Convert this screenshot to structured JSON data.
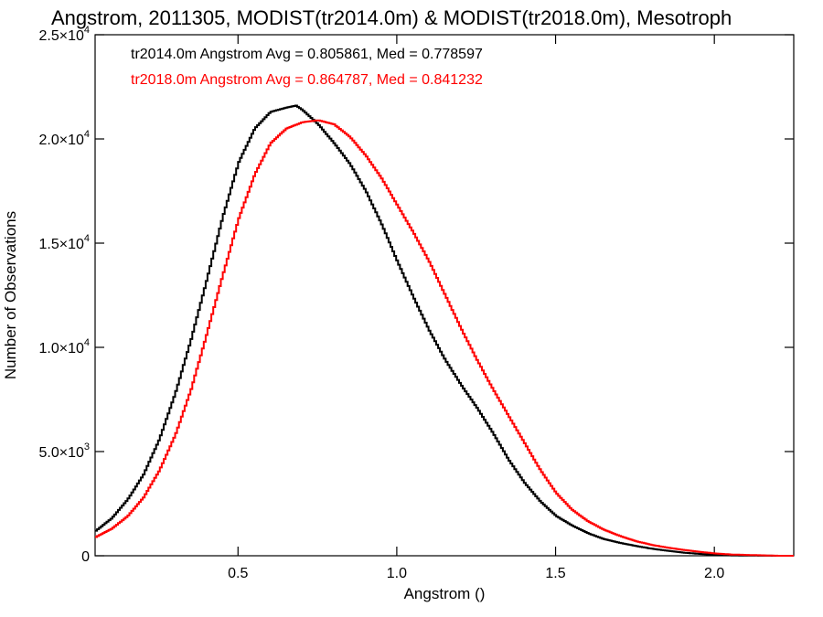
{
  "chart_data": {
    "type": "histogram-step",
    "title": "Angstrom, 2011305, MODIST(tr2014.0m) & MODIST(tr2018.0m), Mesotroph",
    "xlabel": "Angstrom ()",
    "ylabel": "Number of Observations",
    "xlim": [
      0.05,
      2.25
    ],
    "ylim": [
      0,
      25000
    ],
    "x_ticks": [
      {
        "value": 0.5,
        "label": "0.5"
      },
      {
        "value": 1.0,
        "label": "1.0"
      },
      {
        "value": 1.5,
        "label": "1.5"
      },
      {
        "value": 2.0,
        "label": "2.0"
      }
    ],
    "y_ticks": [
      {
        "value": 0,
        "mantissa": "0",
        "exp": ""
      },
      {
        "value": 5000,
        "mantissa": "5.0×10",
        "exp": "3"
      },
      {
        "value": 10000,
        "mantissa": "1.0×10",
        "exp": "4"
      },
      {
        "value": 15000,
        "mantissa": "1.5×10",
        "exp": "4"
      },
      {
        "value": 20000,
        "mantissa": "2.0×10",
        "exp": "4"
      },
      {
        "value": 25000,
        "mantissa": "2.5×10",
        "exp": "4"
      }
    ],
    "series": [
      {
        "name": "tr2014.0m",
        "color": "#000000",
        "legend": "tr2014.0m Angstrom Avg = 0.805861, Med = 0.778597",
        "x": [
          0.05,
          0.1,
          0.15,
          0.2,
          0.25,
          0.3,
          0.35,
          0.4,
          0.45,
          0.5,
          0.55,
          0.6,
          0.65,
          0.68,
          0.7,
          0.75,
          0.8,
          0.85,
          0.9,
          0.95,
          1.0,
          1.05,
          1.1,
          1.15,
          1.2,
          1.25,
          1.3,
          1.35,
          1.4,
          1.45,
          1.5,
          1.55,
          1.6,
          1.65,
          1.7,
          1.75,
          1.8,
          1.85,
          1.9,
          1.95,
          2.0,
          2.05,
          2.1,
          2.15,
          2.2,
          2.25
        ],
        "y": [
          1200,
          1800,
          2700,
          3900,
          5600,
          7800,
          10400,
          13300,
          16300,
          18900,
          20500,
          21300,
          21500,
          21600,
          21400,
          20700,
          19800,
          18800,
          17500,
          15900,
          14100,
          12400,
          10800,
          9400,
          8200,
          7100,
          5900,
          4600,
          3500,
          2600,
          1900,
          1450,
          1080,
          800,
          620,
          470,
          340,
          240,
          150,
          90,
          40,
          20,
          10,
          5,
          0,
          0
        ]
      },
      {
        "name": "tr2018.0m",
        "color": "#ff0000",
        "legend": "tr2018.0m Angstrom Avg = 0.864787, Med = 0.841232",
        "x": [
          0.05,
          0.1,
          0.15,
          0.2,
          0.25,
          0.3,
          0.35,
          0.4,
          0.45,
          0.5,
          0.55,
          0.6,
          0.65,
          0.7,
          0.75,
          0.8,
          0.85,
          0.9,
          0.95,
          1.0,
          1.05,
          1.1,
          1.15,
          1.2,
          1.25,
          1.3,
          1.35,
          1.4,
          1.45,
          1.5,
          1.55,
          1.6,
          1.65,
          1.7,
          1.75,
          1.8,
          1.85,
          1.9,
          1.95,
          2.0,
          2.05,
          2.1,
          2.15,
          2.2,
          2.25
        ],
        "y": [
          900,
          1300,
          1900,
          2800,
          4100,
          5800,
          8000,
          10700,
          13500,
          16200,
          18300,
          19800,
          20500,
          20800,
          20900,
          20700,
          20100,
          19200,
          18100,
          16800,
          15500,
          14100,
          12500,
          10900,
          9400,
          8000,
          6700,
          5400,
          4100,
          3000,
          2200,
          1650,
          1250,
          950,
          700,
          520,
          390,
          280,
          190,
          110,
          60,
          40,
          20,
          0,
          0
        ]
      }
    ]
  }
}
